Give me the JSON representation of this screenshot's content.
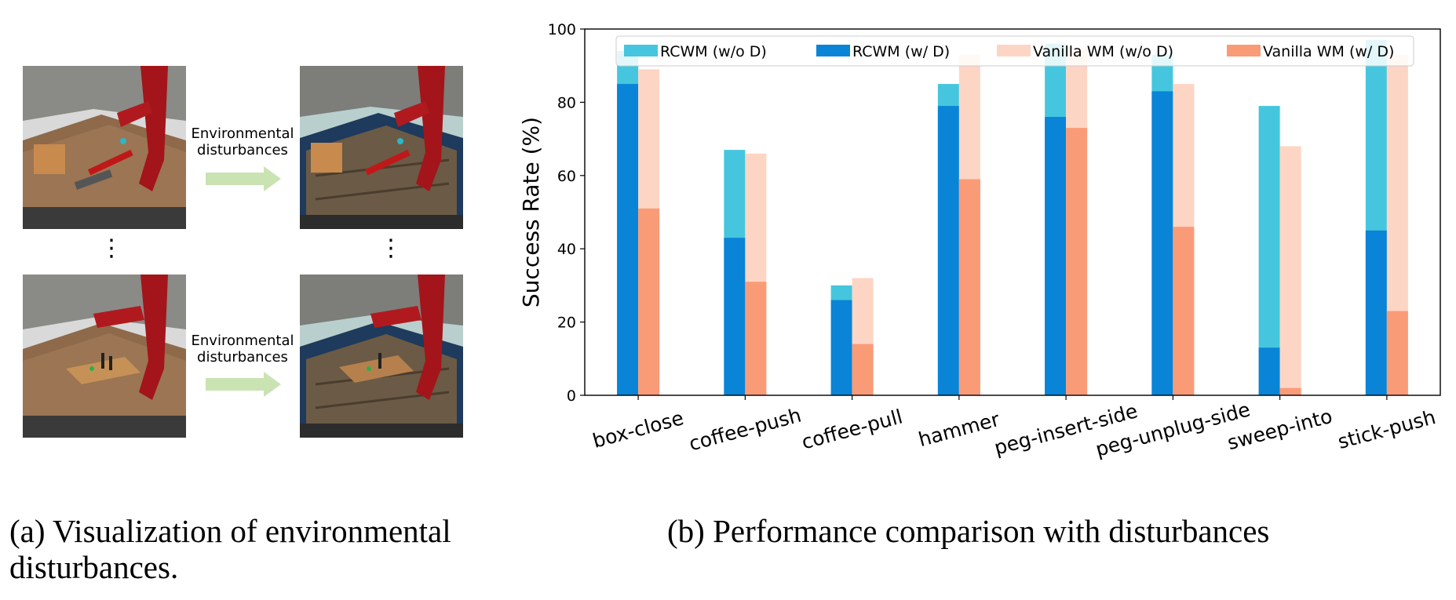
{
  "panel_a": {
    "arrow_label_top": [
      "Environmental",
      "disturbances"
    ],
    "arrow_label_bottom": [
      "Environmental",
      "disturbances"
    ],
    "caption_marker": "(a)",
    "caption_line1": "Visualization of environmental",
    "caption_line2": "disturbances.",
    "vdots": "⋮"
  },
  "panel_b": {
    "caption_marker": "(b)",
    "caption": "Performance comparison with disturbances"
  },
  "colors": {
    "rcwm_wo_d": "#45C6DE",
    "rcwm_w_d": "#0A84D6",
    "vanilla_wo_d": "#FDD5C4",
    "vanilla_w_d": "#FA9B78",
    "arrow": "#C9E3B2"
  },
  "chart_data": {
    "type": "bar",
    "categories": [
      "box-close",
      "coffee-push",
      "coffee-pull",
      "hammer",
      "peg-insert-side",
      "peg-unplug-side",
      "sweep-into",
      "stick-push"
    ],
    "ylabel": "Success Rate (%)",
    "xlabel": "",
    "ylim": [
      0,
      100
    ],
    "yticks": [
      0,
      20,
      40,
      60,
      80,
      100
    ],
    "grid": false,
    "legend_position": "top",
    "series": [
      {
        "name": "RCWM (w/o D)",
        "values": [
          94,
          67,
          30,
          85,
          96,
          93,
          79,
          97
        ]
      },
      {
        "name": "RCWM (w/ D)",
        "values": [
          85,
          43,
          26,
          79,
          76,
          83,
          13,
          45
        ]
      },
      {
        "name": "Vanilla WM (w/o D)",
        "values": [
          89,
          66,
          32,
          93,
          95,
          85,
          68,
          93
        ]
      },
      {
        "name": "Vanilla WM (w/ D)",
        "values": [
          51,
          31,
          14,
          59,
          73,
          46,
          2,
          23
        ]
      }
    ]
  }
}
